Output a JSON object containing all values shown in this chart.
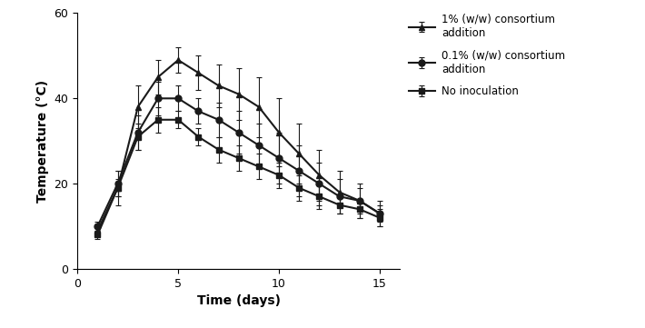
{
  "title": "",
  "xlabel": "Time (days)",
  "ylabel": "Temperature (°C)",
  "xlim": [
    0,
    16
  ],
  "ylim": [
    0,
    60
  ],
  "xticks": [
    0,
    5,
    10,
    15
  ],
  "yticks": [
    0,
    20,
    40,
    60
  ],
  "series": [
    {
      "label": "1% (w/w) consortium\naddition",
      "x": [
        1,
        2,
        3,
        4,
        5,
        6,
        7,
        8,
        9,
        10,
        11,
        12,
        13,
        14,
        15
      ],
      "y": [
        9,
        19,
        38,
        45,
        49,
        46,
        43,
        41,
        38,
        32,
        27,
        22,
        18,
        16,
        13
      ],
      "yerr": [
        1,
        4,
        5,
        4,
        3,
        4,
        5,
        6,
        7,
        8,
        7,
        6,
        5,
        4,
        3
      ],
      "color": "#1a1a1a",
      "marker": "^",
      "markersize": 5,
      "linewidth": 1.5
    },
    {
      "label": "0.1% (w/w) consortium\naddition",
      "x": [
        1,
        2,
        3,
        4,
        5,
        6,
        7,
        8,
        9,
        10,
        11,
        12,
        13,
        14,
        15
      ],
      "y": [
        10,
        20,
        32,
        40,
        40,
        37,
        35,
        32,
        29,
        26,
        23,
        20,
        17,
        16,
        13
      ],
      "yerr": [
        1,
        3,
        4,
        4,
        3,
        3,
        4,
        5,
        5,
        6,
        6,
        5,
        4,
        3,
        2
      ],
      "color": "#1a1a1a",
      "marker": "o",
      "markersize": 5,
      "linewidth": 1.5
    },
    {
      "label": "No inoculation",
      "x": [
        1,
        2,
        3,
        4,
        5,
        6,
        7,
        8,
        9,
        10,
        11,
        12,
        13,
        14,
        15
      ],
      "y": [
        8,
        19,
        31,
        35,
        35,
        31,
        28,
        26,
        24,
        22,
        19,
        17,
        15,
        14,
        12
      ],
      "yerr": [
        1,
        2,
        3,
        3,
        2,
        2,
        3,
        3,
        3,
        3,
        3,
        3,
        2,
        2,
        2
      ],
      "color": "#1a1a1a",
      "marker": "s",
      "markersize": 5,
      "linewidth": 1.5
    }
  ],
  "background_color": "#ffffff",
  "legend_fontsize": 8.5,
  "axis_label_fontsize": 10,
  "tick_fontsize": 9,
  "figsize": [
    7.1,
    3.61
  ],
  "dpi": 100
}
